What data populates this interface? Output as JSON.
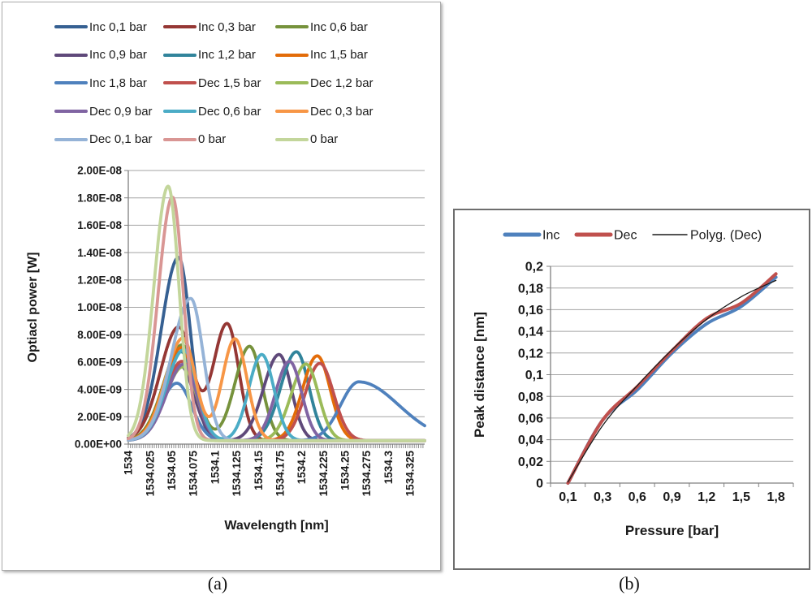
{
  "figure": {
    "caption_a": "(a)",
    "caption_b": "(b)"
  },
  "colors": {
    "grid": "#A3A3A3",
    "axis": "#808080",
    "text": "#1A1A1A"
  },
  "chart_data": [
    {
      "id": "spectra",
      "type": "line",
      "title": "",
      "xlabel": "Wavelength [nm]",
      "ylabel": "Optiacl power [W]",
      "xlim": [
        1534,
        1534.342
      ],
      "ylim": [
        0,
        2e-08
      ],
      "grid": true,
      "legend_position": "top",
      "x_tick_labels": [
        "1534",
        "1534.025",
        "1534.05",
        "1534.075",
        "1534.1",
        "1534.125",
        "1534.15",
        "1534.175",
        "1534.2",
        "1534.225",
        "1534.25",
        "1534.275",
        "1534.3",
        "1534.325"
      ],
      "x_tick_step": 0.025,
      "x_minor_tick_step": 0.0025,
      "y_tick_labels": [
        "0.00E+00",
        "2.00E-09",
        "4.00E-09",
        "6.00E-09",
        "8.00E-09",
        "1.00E-08",
        "1.20E-08",
        "1.40E-08",
        "1.60E-08",
        "1.80E-08",
        "2.00E-08"
      ],
      "y_tick_step": 2e-09,
      "baseline": 2.5e-10,
      "series_note": "each series modeled as asymmetric gaussian peaks: c=center nm, h=peak optical power W, wl/wr=left/right widths nm",
      "series": [
        {
          "name": "Inc 0,1 bar",
          "color": "#366092",
          "peaks": [
            {
              "c": 1534.058,
              "h": 1.34e-08,
              "wl": 0.02,
              "wr": 0.0135
            }
          ]
        },
        {
          "name": "Inc 0,3 bar",
          "color": "#953734",
          "peaks": [
            {
              "c": 1534.058,
              "h": 8.3e-09,
              "wl": 0.021,
              "wr": 0.016
            },
            {
              "c": 1534.114,
              "h": 8.55e-09,
              "wl": 0.016,
              "wr": 0.0135
            }
          ]
        },
        {
          "name": "Inc 0,6 bar",
          "color": "#76923C",
          "peaks": [
            {
              "c": 1534.062,
              "h": 7e-09,
              "wl": 0.021,
              "wr": 0.016
            },
            {
              "c": 1534.14,
              "h": 6.9e-09,
              "wl": 0.017,
              "wr": 0.014
            }
          ]
        },
        {
          "name": "Inc 0,9 bar",
          "color": "#5F497A",
          "peaks": [
            {
              "c": 1534.06,
              "h": 5.5e-09,
              "wl": 0.02,
              "wr": 0.016
            },
            {
              "c": 1534.174,
              "h": 6.3e-09,
              "wl": 0.018,
              "wr": 0.014
            }
          ]
        },
        {
          "name": "Inc 1,2 bar",
          "color": "#31849B",
          "peaks": [
            {
              "c": 1534.061,
              "h": 6.5e-09,
              "wl": 0.02,
              "wr": 0.016
            },
            {
              "c": 1534.194,
              "h": 6.5e-09,
              "wl": 0.018,
              "wr": 0.0145
            }
          ]
        },
        {
          "name": "Inc 1,5 bar",
          "color": "#E36C09",
          "peaks": [
            {
              "c": 1534.061,
              "h": 6.8e-09,
              "wl": 0.02,
              "wr": 0.016
            },
            {
              "c": 1534.218,
              "h": 6.2e-09,
              "wl": 0.017,
              "wr": 0.015
            }
          ]
        },
        {
          "name": "Inc 1,8 bar",
          "color": "#4F81BD",
          "peaks": [
            {
              "c": 1534.056,
              "h": 4.2e-09,
              "wl": 0.019,
              "wr": 0.017
            },
            {
              "c": 1534.266,
              "h": 4.3e-09,
              "wl": 0.021,
              "wr": 0.046
            }
          ]
        },
        {
          "name": "Dec 1,5 bar",
          "color": "#C0504D",
          "peaks": [
            {
              "c": 1534.062,
              "h": 5.8e-09,
              "wl": 0.02,
              "wr": 0.016
            },
            {
              "c": 1534.221,
              "h": 5.65e-09,
              "wl": 0.017,
              "wr": 0.016
            }
          ]
        },
        {
          "name": "Dec 1,2 bar",
          "color": "#9BBB59",
          "peaks": [
            {
              "c": 1534.063,
              "h": 5.4e-09,
              "wl": 0.02,
              "wr": 0.016
            },
            {
              "c": 1534.205,
              "h": 5.6e-09,
              "wl": 0.017,
              "wr": 0.0145
            }
          ]
        },
        {
          "name": "Dec 0,9 bar",
          "color": "#8064A2",
          "peaks": [
            {
              "c": 1534.064,
              "h": 5.6e-09,
              "wl": 0.02,
              "wr": 0.015
            },
            {
              "c": 1534.186,
              "h": 5.8e-09,
              "wl": 0.016,
              "wr": 0.014
            }
          ]
        },
        {
          "name": "Dec 0,6 bar",
          "color": "#4BACC6",
          "peaks": [
            {
              "c": 1534.064,
              "h": 6.65e-09,
              "wl": 0.02,
              "wr": 0.015
            },
            {
              "c": 1534.154,
              "h": 6.3e-09,
              "wl": 0.015,
              "wr": 0.014
            }
          ]
        },
        {
          "name": "Dec 0,3 bar",
          "color": "#F79646",
          "peaks": [
            {
              "c": 1534.063,
              "h": 7.5e-09,
              "wl": 0.02,
              "wr": 0.0145
            },
            {
              "c": 1534.123,
              "h": 7.45e-09,
              "wl": 0.0145,
              "wr": 0.014
            }
          ]
        },
        {
          "name": "Dec 0,1 bar",
          "color": "#95B3D7",
          "peaks": [
            {
              "c": 1534.072,
              "h": 1.04e-08,
              "wl": 0.022,
              "wr": 0.0145
            }
          ]
        },
        {
          "name": "0 bar",
          "color": "#D99694",
          "peaks": [
            {
              "c": 1534.051,
              "h": 1.78e-08,
              "wl": 0.0165,
              "wr": 0.0125
            }
          ]
        },
        {
          "name": "0 bar",
          "color": "#C3D69B",
          "peaks": [
            {
              "c": 1534.046,
              "h": 1.86e-08,
              "wl": 0.0165,
              "wr": 0.0125
            }
          ]
        }
      ]
    },
    {
      "id": "peak-distance",
      "type": "line",
      "title": "",
      "xlabel": "Pressure [bar]",
      "ylabel": "Peak distance [nm]",
      "categories": [
        "0,1",
        "0,3",
        "0,6",
        "0,9",
        "1,2",
        "1,5",
        "1,8"
      ],
      "ylim": [
        0,
        0.2
      ],
      "y_tick_labels": [
        "0",
        "0,02",
        "0,04",
        "0,06",
        "0,08",
        "0,1",
        "0,12",
        "0,14",
        "0,16",
        "0,18",
        "0,2"
      ],
      "y_tick_step": 0.02,
      "grid": true,
      "legend_position": "top",
      "series": [
        {
          "name": "Inc",
          "color": "#4F81BD",
          "line_width": 4,
          "values": [
            0,
            0.058,
            0.086,
            0.12,
            0.147,
            0.163,
            0.19
          ]
        },
        {
          "name": "Dec",
          "color": "#C0504D",
          "line_width": 4,
          "values": [
            0,
            0.058,
            0.089,
            0.122,
            0.152,
            0.166,
            0.193
          ]
        },
        {
          "name": "Polyg. (Dec)",
          "color": "#1A1A1A",
          "line_width": 1.3,
          "values": [
            0.001,
            0.053,
            0.09,
            0.123,
            0.151,
            0.172,
            0.187
          ]
        }
      ]
    }
  ]
}
